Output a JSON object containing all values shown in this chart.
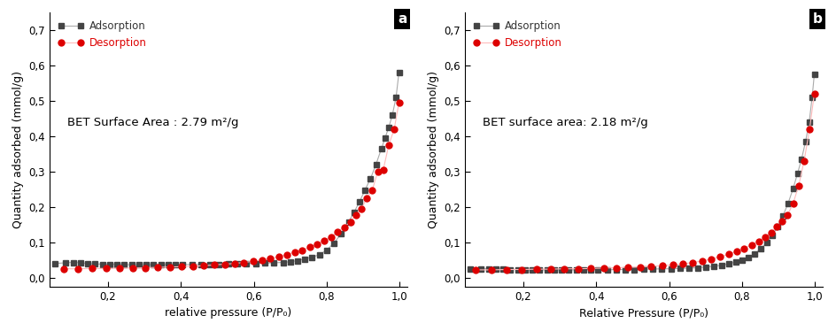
{
  "panel_a": {
    "label": "a",
    "xlabel": "relative pressure (P/P₀)",
    "ylabel": "Quantity adsorbed (mmol/g)",
    "bet_text": "BET Surface Area : 2.79 m²/g",
    "ylim": [
      -0.025,
      0.75
    ],
    "xlim": [
      0.04,
      1.02
    ],
    "yticks": [
      0.0,
      0.1,
      0.2,
      0.3,
      0.4,
      0.5,
      0.6,
      0.7
    ],
    "ytick_labels": [
      "0,0",
      "0,1",
      "0,2",
      "0,3",
      "0,4",
      "0,5",
      "0,6",
      "0,7"
    ],
    "xticks": [
      0.2,
      0.4,
      0.6,
      0.8,
      1.0
    ],
    "xtick_labels": [
      "0,2",
      "0,4",
      "0,6",
      "0,8",
      "1,0"
    ],
    "adsorption_x": [
      0.055,
      0.085,
      0.105,
      0.125,
      0.145,
      0.165,
      0.185,
      0.205,
      0.225,
      0.245,
      0.265,
      0.285,
      0.305,
      0.325,
      0.345,
      0.365,
      0.385,
      0.405,
      0.43,
      0.455,
      0.48,
      0.505,
      0.53,
      0.555,
      0.58,
      0.605,
      0.63,
      0.655,
      0.68,
      0.7,
      0.72,
      0.74,
      0.76,
      0.78,
      0.8,
      0.82,
      0.84,
      0.86,
      0.875,
      0.89,
      0.905,
      0.92,
      0.935,
      0.95,
      0.96,
      0.97,
      0.98,
      0.99,
      0.998
    ],
    "adsorption_y": [
      0.04,
      0.042,
      0.043,
      0.042,
      0.04,
      0.039,
      0.038,
      0.038,
      0.037,
      0.037,
      0.036,
      0.036,
      0.036,
      0.037,
      0.037,
      0.037,
      0.037,
      0.037,
      0.037,
      0.037,
      0.038,
      0.038,
      0.039,
      0.039,
      0.04,
      0.04,
      0.041,
      0.042,
      0.043,
      0.045,
      0.048,
      0.053,
      0.058,
      0.065,
      0.078,
      0.098,
      0.125,
      0.158,
      0.185,
      0.215,
      0.248,
      0.28,
      0.32,
      0.365,
      0.395,
      0.425,
      0.46,
      0.51,
      0.58
    ],
    "desorption_x": [
      0.998,
      0.985,
      0.97,
      0.955,
      0.94,
      0.925,
      0.91,
      0.895,
      0.88,
      0.865,
      0.848,
      0.83,
      0.812,
      0.793,
      0.774,
      0.754,
      0.733,
      0.712,
      0.69,
      0.668,
      0.645,
      0.622,
      0.598,
      0.573,
      0.547,
      0.52,
      0.492,
      0.463,
      0.433,
      0.402,
      0.37,
      0.337,
      0.303,
      0.268,
      0.232,
      0.195,
      0.157,
      0.118,
      0.078
    ],
    "desorption_y": [
      0.495,
      0.42,
      0.375,
      0.305,
      0.3,
      0.248,
      0.225,
      0.195,
      0.178,
      0.158,
      0.143,
      0.13,
      0.115,
      0.105,
      0.095,
      0.086,
      0.078,
      0.072,
      0.065,
      0.059,
      0.054,
      0.05,
      0.046,
      0.043,
      0.04,
      0.038,
      0.036,
      0.034,
      0.032,
      0.031,
      0.03,
      0.029,
      0.028,
      0.027,
      0.027,
      0.026,
      0.026,
      0.025,
      0.025
    ]
  },
  "panel_b": {
    "label": "b",
    "xlabel": "Relative Pressure (P/P₀)",
    "ylabel": "Quantity adsorbed (mmol/g)",
    "bet_text": "BET surface area: 2.18 m²/g",
    "ylim": [
      -0.025,
      0.75
    ],
    "xlim": [
      0.04,
      1.02
    ],
    "yticks": [
      0.0,
      0.1,
      0.2,
      0.3,
      0.4,
      0.5,
      0.6,
      0.7
    ],
    "ytick_labels": [
      "0,0",
      "0,1",
      "0,2",
      "0,3",
      "0,4",
      "0,5",
      "0,6",
      "0,7"
    ],
    "xticks": [
      0.2,
      0.4,
      0.6,
      0.8,
      1.0
    ],
    "xtick_labels": [
      "0,2",
      "0,4",
      "0,6",
      "0,8",
      "1,0"
    ],
    "adsorption_x": [
      0.055,
      0.085,
      0.105,
      0.125,
      0.145,
      0.165,
      0.185,
      0.205,
      0.225,
      0.245,
      0.265,
      0.285,
      0.305,
      0.325,
      0.345,
      0.365,
      0.385,
      0.405,
      0.43,
      0.455,
      0.48,
      0.505,
      0.53,
      0.555,
      0.58,
      0.605,
      0.63,
      0.655,
      0.678,
      0.7,
      0.722,
      0.743,
      0.763,
      0.782,
      0.8,
      0.818,
      0.835,
      0.852,
      0.868,
      0.883,
      0.898,
      0.912,
      0.926,
      0.94,
      0.952,
      0.963,
      0.974,
      0.984,
      0.992,
      0.998
    ],
    "adsorption_y": [
      0.025,
      0.025,
      0.025,
      0.024,
      0.024,
      0.023,
      0.023,
      0.022,
      0.022,
      0.022,
      0.022,
      0.022,
      0.022,
      0.022,
      0.022,
      0.022,
      0.022,
      0.022,
      0.022,
      0.023,
      0.023,
      0.023,
      0.024,
      0.024,
      0.025,
      0.025,
      0.026,
      0.027,
      0.028,
      0.03,
      0.032,
      0.035,
      0.039,
      0.044,
      0.05,
      0.058,
      0.068,
      0.082,
      0.1,
      0.12,
      0.145,
      0.175,
      0.21,
      0.252,
      0.295,
      0.335,
      0.385,
      0.44,
      0.51,
      0.575
    ],
    "desorption_x": [
      0.998,
      0.985,
      0.97,
      0.955,
      0.94,
      0.925,
      0.91,
      0.895,
      0.88,
      0.863,
      0.845,
      0.826,
      0.806,
      0.785,
      0.763,
      0.74,
      0.716,
      0.691,
      0.665,
      0.638,
      0.61,
      0.581,
      0.551,
      0.52,
      0.488,
      0.455,
      0.421,
      0.386,
      0.35,
      0.313,
      0.275,
      0.236,
      0.196,
      0.155,
      0.113,
      0.07
    ],
    "desorption_y": [
      0.52,
      0.42,
      0.33,
      0.26,
      0.21,
      0.178,
      0.16,
      0.145,
      0.128,
      0.115,
      0.103,
      0.093,
      0.083,
      0.074,
      0.066,
      0.059,
      0.053,
      0.047,
      0.043,
      0.039,
      0.036,
      0.034,
      0.032,
      0.03,
      0.029,
      0.028,
      0.027,
      0.026,
      0.025,
      0.025,
      0.024,
      0.024,
      0.023,
      0.023,
      0.022,
      0.022
    ]
  },
  "adsorption_line_color": "#aaaaaa",
  "adsorption_marker_color": "#444444",
  "desorption_line_color": "#ffbbbb",
  "desorption_marker_color": "#dd0000",
  "marker_size_sq": 4,
  "marker_size_ci": 5,
  "linewidth": 0.8,
  "legend_fontsize": 8.5,
  "label_fontsize": 9,
  "tick_fontsize": 8.5,
  "bet_fontsize": 9.5
}
